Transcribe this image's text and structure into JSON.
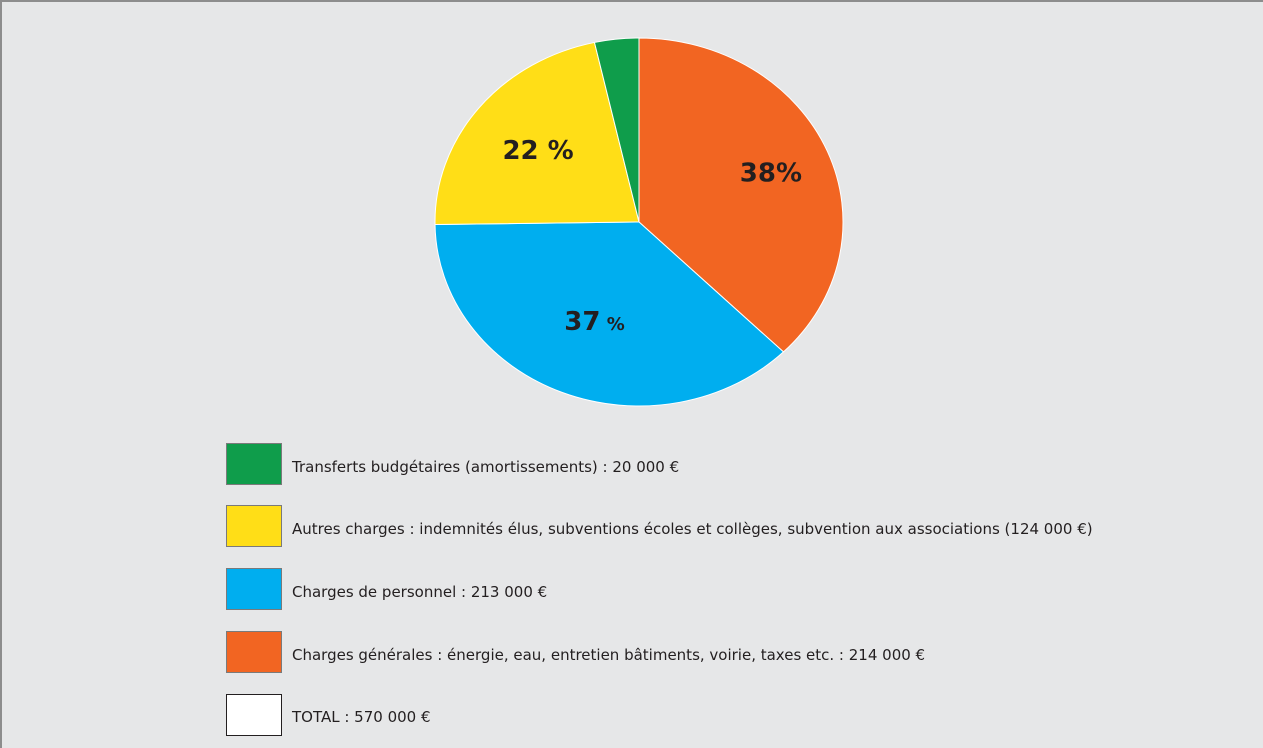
{
  "chart_data": {
    "type": "pie",
    "title": "",
    "slices": [
      {
        "label": "Charges générales : énergie, eau, entretien bâtiments, voirie, taxes etc. : 214 000 €",
        "value": 214000,
        "color": "#f26522",
        "percent_label_main": "38%",
        "percent_label_unit": ""
      },
      {
        "label": "Charges de personnel : 213 000 €",
        "value": 213000,
        "color": "#00aeef",
        "percent_label_main": "37",
        "percent_label_unit": " %"
      },
      {
        "label": "Autres charges : indemnités élus, subventions écoles et collèges, subvention aux associations (124 000 €)",
        "value": 124000,
        "color": "#ffde17",
        "percent_label_main": "22 %",
        "percent_label_unit": ""
      },
      {
        "label": "Transferts budgétaires (amortissements) : 20 000 €",
        "value": 20000,
        "color": "#0f9d4b",
        "percent_label_main": "",
        "percent_label_unit": ""
      }
    ]
  },
  "legend": {
    "items": [
      {
        "label": "Transferts budgétaires (amortissements) : 20 000 €",
        "color": "#0f9d4b"
      },
      {
        "label": "Autres charges : indemnités élus, subventions écoles et collèges, subvention aux associations (124 000 €)",
        "color": "#ffde17"
      },
      {
        "label": "Charges de personnel : 213 000 €",
        "color": "#00aeef"
      },
      {
        "label": "Charges générales : énergie, eau, entretien bâtiments, voirie, taxes etc. : 214 000 €",
        "color": "#f26522"
      },
      {
        "label": "TOTAL : 570 000 €",
        "color": "#ffffff"
      }
    ]
  }
}
